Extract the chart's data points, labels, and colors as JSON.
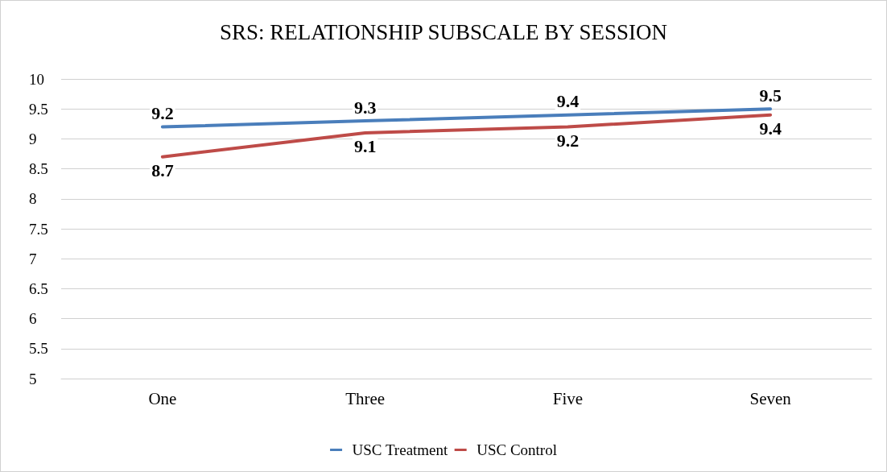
{
  "chart_data": {
    "type": "line",
    "title": "SRS: RELATIONSHIP SUBSCALE BY SESSION",
    "categories": [
      "One",
      "Three",
      "Five",
      "Seven"
    ],
    "series": [
      {
        "name": "USC Treatment",
        "color": "#4a7ebb",
        "values": [
          9.2,
          9.3,
          9.4,
          9.5
        ]
      },
      {
        "name": "USC Control",
        "color": "#be4b48",
        "values": [
          8.7,
          9.1,
          9.2,
          9.4
        ]
      }
    ],
    "ylim": [
      5,
      10
    ],
    "yticks": [
      5,
      5.5,
      6,
      6.5,
      7,
      7.5,
      8,
      8.5,
      9,
      9.5,
      10
    ],
    "grid": "y",
    "legend": "bottom",
    "data_labels": true
  }
}
